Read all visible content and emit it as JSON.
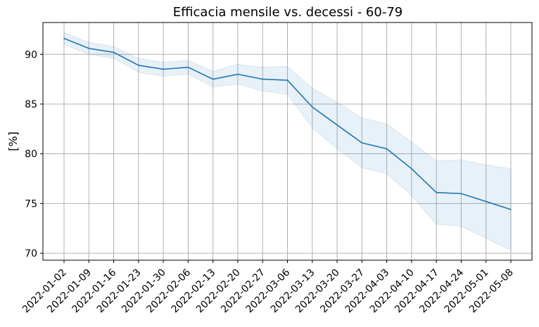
{
  "chart_data": {
    "type": "line",
    "title": "Efficacia mensile vs. decessi - 60-79",
    "xlabel": "",
    "ylabel": "[%]",
    "ylim": [
      69.3,
      93.2
    ],
    "yticks": [
      70,
      75,
      80,
      85,
      90
    ],
    "grid": true,
    "x": [
      "2022-01-02",
      "2022-01-09",
      "2022-01-16",
      "2022-01-23",
      "2022-01-30",
      "2022-02-06",
      "2022-02-13",
      "2022-02-20",
      "2022-02-27",
      "2022-03-06",
      "2022-03-13",
      "2022-03-20",
      "2022-03-27",
      "2022-04-03",
      "2022-04-10",
      "2022-04-17",
      "2022-04-24",
      "2022-05-01",
      "2022-05-08"
    ],
    "series": [
      {
        "values": [
          91.6,
          90.6,
          90.2,
          88.9,
          88.5,
          88.7,
          87.5,
          88.0,
          87.5,
          87.4,
          84.7,
          82.9,
          81.1,
          80.5,
          78.5,
          76.1,
          76.0,
          75.2,
          74.4
        ],
        "lower": [
          91.0,
          90.0,
          89.6,
          88.2,
          87.8,
          88.0,
          86.7,
          87.0,
          86.3,
          86.0,
          82.6,
          80.5,
          78.6,
          78.0,
          75.8,
          72.9,
          72.7,
          71.5,
          70.3
        ],
        "upper": [
          92.2,
          91.2,
          90.8,
          89.6,
          89.2,
          89.4,
          88.3,
          89.0,
          88.7,
          88.8,
          86.6,
          85.2,
          83.6,
          83.0,
          81.2,
          79.3,
          79.4,
          78.9,
          78.5
        ],
        "color": "#1f77b4",
        "band_color": "#1f77b4"
      }
    ]
  }
}
